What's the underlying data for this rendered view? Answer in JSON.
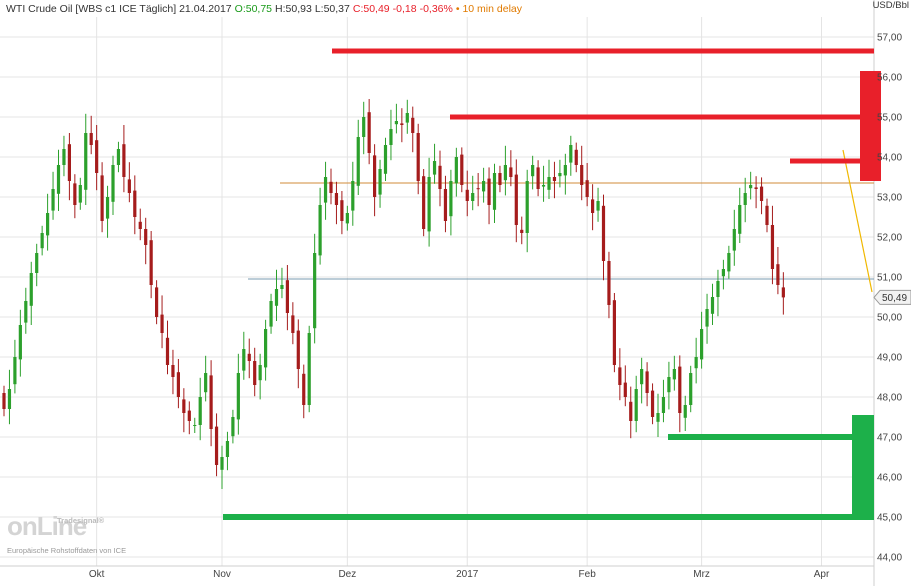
{
  "header": {
    "title": "WTI Crude Oil [WBS c1 ICE Täglich] 21.04.2017",
    "open": "O:50,75",
    "high": "H:50,93",
    "low": "L:50,37",
    "close": "C:50,49",
    "change": "-0,18",
    "change_pct": "-0,36%",
    "delay": "• 10 min delay"
  },
  "unit_label": "USD/Bbl",
  "last_price_label": "50,49",
  "logo": {
    "brand_main": "onLine",
    "brand_top": "Tradesignal®",
    "source_note": "Europäische Rohstoffdaten von ICE"
  },
  "colors": {
    "up": "#2ca02c",
    "down": "#a51c1c",
    "resistance": "#e8202a",
    "support": "#1db04a",
    "ma_line": "#d08b3a",
    "trend_line": "#7a9bb0",
    "arrow": "#f0b800",
    "header_green": "#1a9a1a",
    "header_red": "#e8202a",
    "header_orange": "#e07a00"
  },
  "chart_data": {
    "type": "candlestick",
    "title": "WTI Crude Oil [WBS c1 ICE Täglich] 21.04.2017",
    "ylabel": "USD/Bbl",
    "ylim": [
      44,
      57.5
    ],
    "yticks": [
      "44,00",
      "45,00",
      "46,00",
      "47,00",
      "48,00",
      "49,00",
      "50,00",
      "51,00",
      "52,00",
      "53,00",
      "54,00",
      "55,00",
      "56,00",
      "57,00"
    ],
    "ytick_values": [
      44,
      45,
      46,
      47,
      48,
      49,
      50,
      51,
      52,
      53,
      54,
      55,
      56,
      57
    ],
    "xticks": [
      "Okt",
      "Nov",
      "Dez",
      "2017",
      "Feb",
      "Mrz",
      "Apr"
    ],
    "xtick_positions": [
      17,
      40,
      63,
      85,
      107,
      128,
      150
    ],
    "grid": true,
    "closes": [
      47.7,
      48.2,
      49.0,
      49.8,
      50.4,
      51.1,
      51.6,
      52.1,
      52.6,
      53.2,
      53.8,
      54.2,
      53.4,
      52.8,
      53.3,
      54.6,
      54.3,
      53.6,
      52.4,
      53.0,
      53.8,
      54.2,
      53.5,
      53.1,
      52.5,
      52.2,
      51.8,
      50.8,
      50.0,
      49.6,
      48.8,
      48.5,
      48.0,
      47.6,
      47.4,
      47.3,
      48.0,
      48.6,
      47.2,
      46.3,
      46.5,
      46.9,
      47.5,
      48.6,
      49.2,
      48.9,
      48.3,
      48.8,
      49.7,
      50.4,
      50.7,
      50.8,
      50.1,
      49.6,
      48.7,
      47.8,
      49.6,
      51.6,
      52.8,
      53.5,
      53.1,
      52.8,
      52.4,
      52.6,
      53.4,
      54.5,
      55.0,
      54.1,
      53.0,
      53.7,
      54.3,
      54.7,
      54.9,
      54.8,
      55.1,
      54.6,
      53.4,
      52.2,
      53.5,
      53.9,
      53.2,
      52.4,
      53.4,
      54.0,
      53.3,
      52.9,
      53.1,
      53.2,
      53.4,
      52.8,
      53.6,
      53.3,
      53.8,
      53.5,
      52.3,
      52.1,
      53.4,
      53.8,
      53.2,
      53.3,
      53.5,
      53.4,
      53.6,
      53.8,
      54.3,
      53.8,
      53.3,
      53.0,
      52.6,
      52.9,
      51.4,
      50.3,
      48.8,
      48.3,
      48.0,
      47.4,
      48.2,
      48.7,
      48.1,
      47.5,
      47.6,
      48.0,
      48.5,
      48.7,
      47.6,
      47.8,
      48.6,
      49.0,
      49.7,
      50.2,
      50.5,
      50.9,
      51.2,
      51.6,
      52.2,
      52.8,
      53.1,
      53.3,
      53.2,
      52.9,
      52.3,
      51.2,
      50.8,
      50.49
    ],
    "levels": [
      {
        "price": 56.65,
        "kind": "resistance"
      },
      {
        "price": 55.0,
        "kind": "resistance"
      },
      {
        "price": 53.9,
        "kind": "resistance"
      },
      {
        "price": 47.0,
        "kind": "support"
      },
      {
        "price": 45.0,
        "kind": "support"
      }
    ],
    "horizontal_lines": [
      {
        "price": 53.35,
        "kind": "ma_line"
      },
      {
        "price": 50.95,
        "kind": "trend_line"
      }
    ],
    "last_price": 50.49
  }
}
